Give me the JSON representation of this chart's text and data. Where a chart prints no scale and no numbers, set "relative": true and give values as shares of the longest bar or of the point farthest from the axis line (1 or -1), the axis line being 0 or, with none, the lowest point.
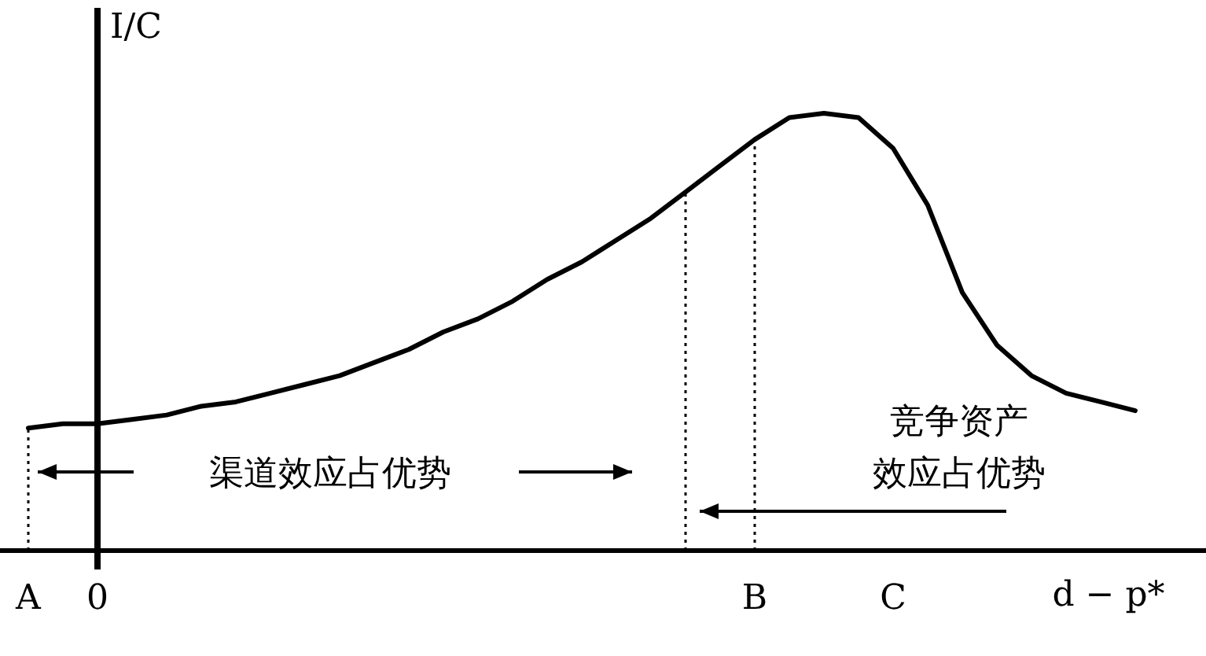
{
  "chart_data": {
    "type": "line",
    "relative": true,
    "xlabel": "d − p*",
    "ylabel": "I/C",
    "categories": [
      "A",
      null,
      "0",
      null,
      null,
      null,
      null,
      null,
      null,
      null,
      null,
      null,
      null,
      null,
      null,
      null,
      null,
      null,
      null,
      null,
      null,
      "B",
      null,
      null,
      null,
      "C",
      null,
      null,
      null,
      null,
      null,
      null,
      null
    ],
    "series": [
      {
        "color": "#000000",
        "values": [
          0.28,
          0.29,
          0.29,
          0.3,
          0.31,
          0.33,
          0.34,
          0.36,
          0.38,
          0.4,
          0.43,
          0.46,
          0.5,
          0.53,
          0.57,
          0.62,
          0.66,
          0.71,
          0.76,
          0.82,
          0.88,
          0.94,
          0.99,
          1,
          0.99,
          0.92,
          0.79,
          0.59,
          0.47,
          0.4,
          0.36,
          0.34,
          0.32
        ]
      }
    ],
    "ref_lines": [
      {
        "axis": "x",
        "value": "A",
        "line_style": "dotted"
      },
      {
        "axis": "x",
        "value": "B",
        "line_style": "dotted"
      }
    ],
    "annotations": [
      "渠道效应占优势",
      "竞争资产",
      "效应占优势"
    ]
  }
}
